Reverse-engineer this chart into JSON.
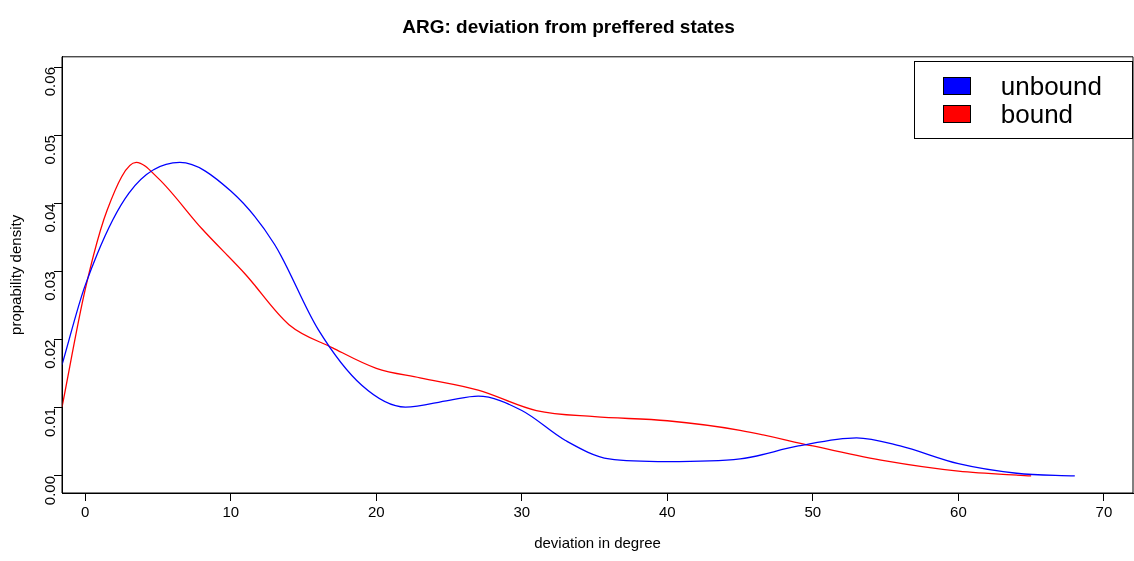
{
  "chart_data": {
    "type": "line",
    "title": "ARG: deviation from preffered states",
    "xlabel": "deviation in degree",
    "ylabel": "propability density",
    "xlim": [
      -1.6,
      72
    ],
    "xticks": [
      0,
      10,
      20,
      30,
      40,
      50,
      60,
      70
    ],
    "ylim": [
      -0.0025,
      0.0615
    ],
    "yticks": [
      {
        "value": 0,
        "label": "0.00"
      },
      {
        "value": 0.01,
        "label": "0.01"
      },
      {
        "value": 0.02,
        "label": "0.02"
      },
      {
        "value": 0.03,
        "label": "0.03"
      },
      {
        "value": 0.04,
        "label": "0.04"
      },
      {
        "value": 0.05,
        "label": "0.05"
      },
      {
        "value": 0.06,
        "label": "0.06"
      }
    ],
    "grid": false,
    "legend": "top right",
    "marker": "none",
    "line_style": "solid",
    "series": [
      {
        "name": "unbound",
        "color": "#0000ff",
        "x": [
          -1.6,
          0,
          3,
          6.5,
          10,
          13,
          16,
          19,
          22,
          25,
          27,
          30,
          33,
          36,
          40,
          45,
          49,
          53,
          56,
          60,
          64,
          68
        ],
        "values": [
          0.0163,
          0.028,
          0.0415,
          0.046,
          0.0418,
          0.034,
          0.0215,
          0.0133,
          0.0101,
          0.0111,
          0.0117,
          0.0096,
          0.0052,
          0.0025,
          0.0021,
          0.0025,
          0.0044,
          0.0056,
          0.0044,
          0.0018,
          0.0004,
          0
        ]
      },
      {
        "name": "bound",
        "color": "#ff0000",
        "x": [
          -1.6,
          0,
          1.5,
          3.5,
          5,
          8,
          11,
          14,
          17,
          20,
          23,
          27,
          31,
          35,
          40,
          45,
          50,
          55,
          60,
          65
        ],
        "values": [
          0.0101,
          0.0274,
          0.039,
          0.046,
          0.0437,
          0.0363,
          0.0296,
          0.0222,
          0.0188,
          0.0158,
          0.0144,
          0.0126,
          0.0096,
          0.0087,
          0.0081,
          0.0067,
          0.0044,
          0.0022,
          0.0007,
          0
        ]
      }
    ]
  }
}
